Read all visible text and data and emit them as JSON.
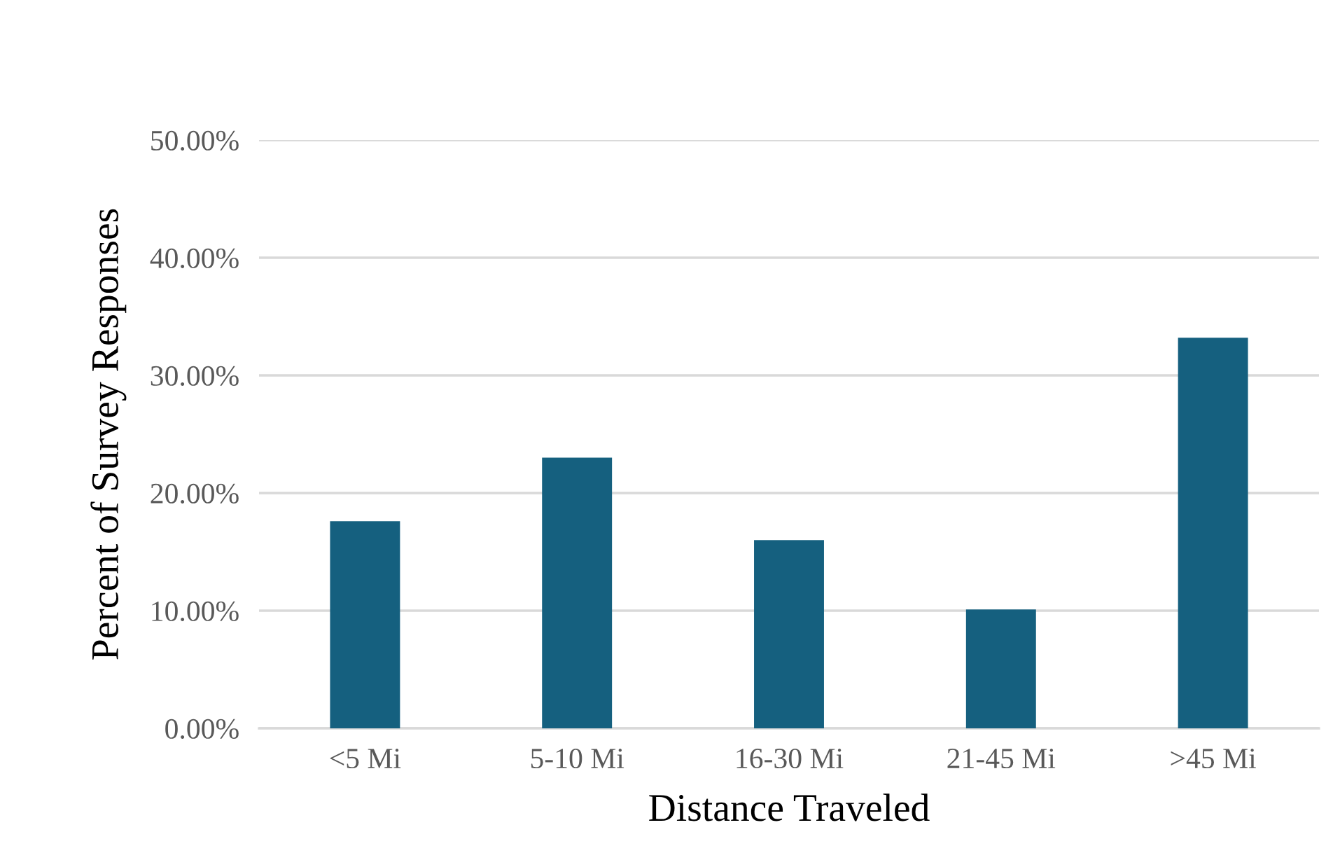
{
  "chart_data": {
    "type": "bar",
    "xlabel": "Distance Traveled",
    "ylabel": "Percent of Survey Responses",
    "categories": [
      "<5 Mi",
      "5-10 Mi",
      "16-30 Mi",
      "21-45 Mi",
      ">45 Mi"
    ],
    "values": [
      17.6,
      23.0,
      16.0,
      10.1,
      33.2
    ],
    "color": "#15607f",
    "ylim": [
      0,
      50
    ],
    "yticks": [
      {
        "value": 0,
        "label": "0.00%"
      },
      {
        "value": 10,
        "label": "10.00%"
      },
      {
        "value": 20,
        "label": "20.00%"
      },
      {
        "value": 30,
        "label": "30.00%"
      },
      {
        "value": 40,
        "label": "40.00%"
      },
      {
        "value": 50,
        "label": "50.00%"
      }
    ],
    "grid": "y"
  }
}
